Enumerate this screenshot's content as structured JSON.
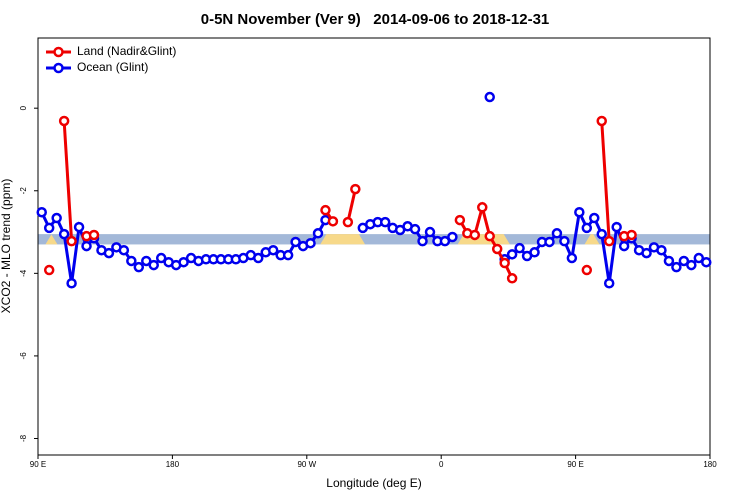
{
  "chart_data": {
    "type": "line",
    "title": "0-5N November (Ver 9)   2014-09-06 to 2018-12-31",
    "x_label": "Longitude (deg E)",
    "y_label": "XCO2 - MLO trend (ppm)",
    "xlim": [
      90,
      540
    ],
    "ylim": [
      -8.4,
      1.7
    ],
    "xticks": [
      {
        "value": 90,
        "label": "90 E"
      },
      180,
      {
        "value": 270,
        "label": "90 W"
      },
      {
        "value": 360,
        "label": "0"
      },
      {
        "value": 450,
        "label": "90 E"
      },
      {
        "value": 540,
        "label": "180"
      }
    ],
    "yticks": [
      0,
      -2,
      -4,
      -6,
      -8
    ],
    "grid": false,
    "legend": "top-left",
    "band": {
      "ylim": [
        -3.3,
        -3.05
      ],
      "color": "#a3b8d8",
      "land_color": "#f7d98a",
      "land": [
        [
          95,
          103
        ],
        [
          279,
          309
        ],
        [
          371,
          406
        ],
        [
          456,
          466
        ]
      ]
    },
    "x": [
      92.5,
      97.5,
      102.5,
      107.5,
      112.5,
      117.5,
      122.5,
      127.5,
      132.5,
      137.5,
      142.5,
      147.5,
      152.5,
      157.5,
      162.5,
      167.5,
      172.5,
      177.5,
      182.5,
      187.5,
      192.5,
      197.5,
      202.5,
      207.5,
      212.5,
      217.5,
      222.5,
      227.5,
      232.5,
      237.5,
      242.5,
      247.5,
      252.5,
      257.5,
      262.5,
      267.5,
      272.5,
      277.5,
      282.5,
      287.5,
      292.5,
      297.5,
      302.5,
      307.5,
      312.5,
      317.5,
      322.5,
      327.5,
      332.5,
      337.5,
      342.5,
      347.5,
      352.5,
      357.5,
      362.5,
      367.5,
      372.5,
      377.5,
      382.5,
      387.5,
      392.5,
      397.5,
      402.5,
      407.5,
      412.5,
      417.5,
      422.5,
      427.5,
      432.5,
      437.5,
      442.5,
      447.5,
      452.5,
      457.5,
      462.5,
      467.5,
      472.5,
      477.5,
      482.5,
      487.5,
      492.5,
      497.5,
      502.5,
      507.5,
      512.5,
      517.5,
      522.5,
      527.5,
      532.5,
      537.5
    ],
    "series": [
      {
        "name": "Land (Nadir&Glint)",
        "color": "#ee0000",
        "values": [
          null,
          -3.92,
          null,
          -0.31,
          -3.22,
          null,
          -3.1,
          -3.07,
          null,
          null,
          null,
          null,
          null,
          null,
          null,
          null,
          null,
          null,
          null,
          null,
          null,
          null,
          null,
          null,
          null,
          null,
          null,
          null,
          null,
          null,
          null,
          null,
          null,
          null,
          null,
          null,
          null,
          null,
          -2.47,
          -2.74,
          null,
          -2.76,
          -1.96,
          null,
          null,
          null,
          null,
          null,
          null,
          null,
          null,
          null,
          null,
          null,
          null,
          null,
          -2.71,
          -3.03,
          -3.07,
          -2.4,
          -3.1,
          -3.41,
          -3.75,
          -4.12,
          null,
          null,
          null,
          null,
          null,
          null,
          null,
          null,
          null,
          -3.92,
          null,
          -0.31,
          -3.22,
          null,
          -3.1,
          -3.07,
          null,
          null,
          null,
          null,
          null,
          null,
          null,
          null,
          null,
          null
        ]
      },
      {
        "name": "Ocean (Glint)",
        "color": "#0000ee",
        "values": [
          -2.52,
          -2.9,
          -2.66,
          -3.05,
          -4.24,
          -2.88,
          -3.34,
          -3.15,
          -3.44,
          -3.51,
          -3.37,
          -3.44,
          -3.7,
          -3.85,
          -3.7,
          -3.8,
          -3.63,
          -3.73,
          -3.8,
          -3.73,
          -3.63,
          -3.7,
          -3.66,
          -3.66,
          -3.66,
          -3.66,
          -3.66,
          -3.63,
          -3.56,
          -3.63,
          -3.49,
          -3.44,
          -3.56,
          -3.56,
          -3.24,
          -3.34,
          -3.27,
          -3.03,
          -2.71,
          null,
          null,
          null,
          null,
          -2.9,
          -2.81,
          -2.76,
          -2.76,
          -2.9,
          -2.95,
          -2.86,
          -2.93,
          -3.22,
          -3.0,
          -3.22,
          -3.22,
          -3.12,
          null,
          null,
          null,
          null,
          0.27,
          null,
          -3.66,
          -3.54,
          -3.39,
          -3.58,
          -3.49,
          -3.24,
          -3.24,
          -3.03,
          -3.22,
          -3.63,
          -2.52,
          -2.9,
          -2.66,
          -3.05,
          -4.24,
          -2.88,
          -3.34,
          -3.15,
          -3.44,
          -3.51,
          -3.37,
          -3.44,
          -3.7,
          -3.85,
          -3.7,
          -3.8,
          -3.63,
          -3.73
        ]
      }
    ]
  }
}
